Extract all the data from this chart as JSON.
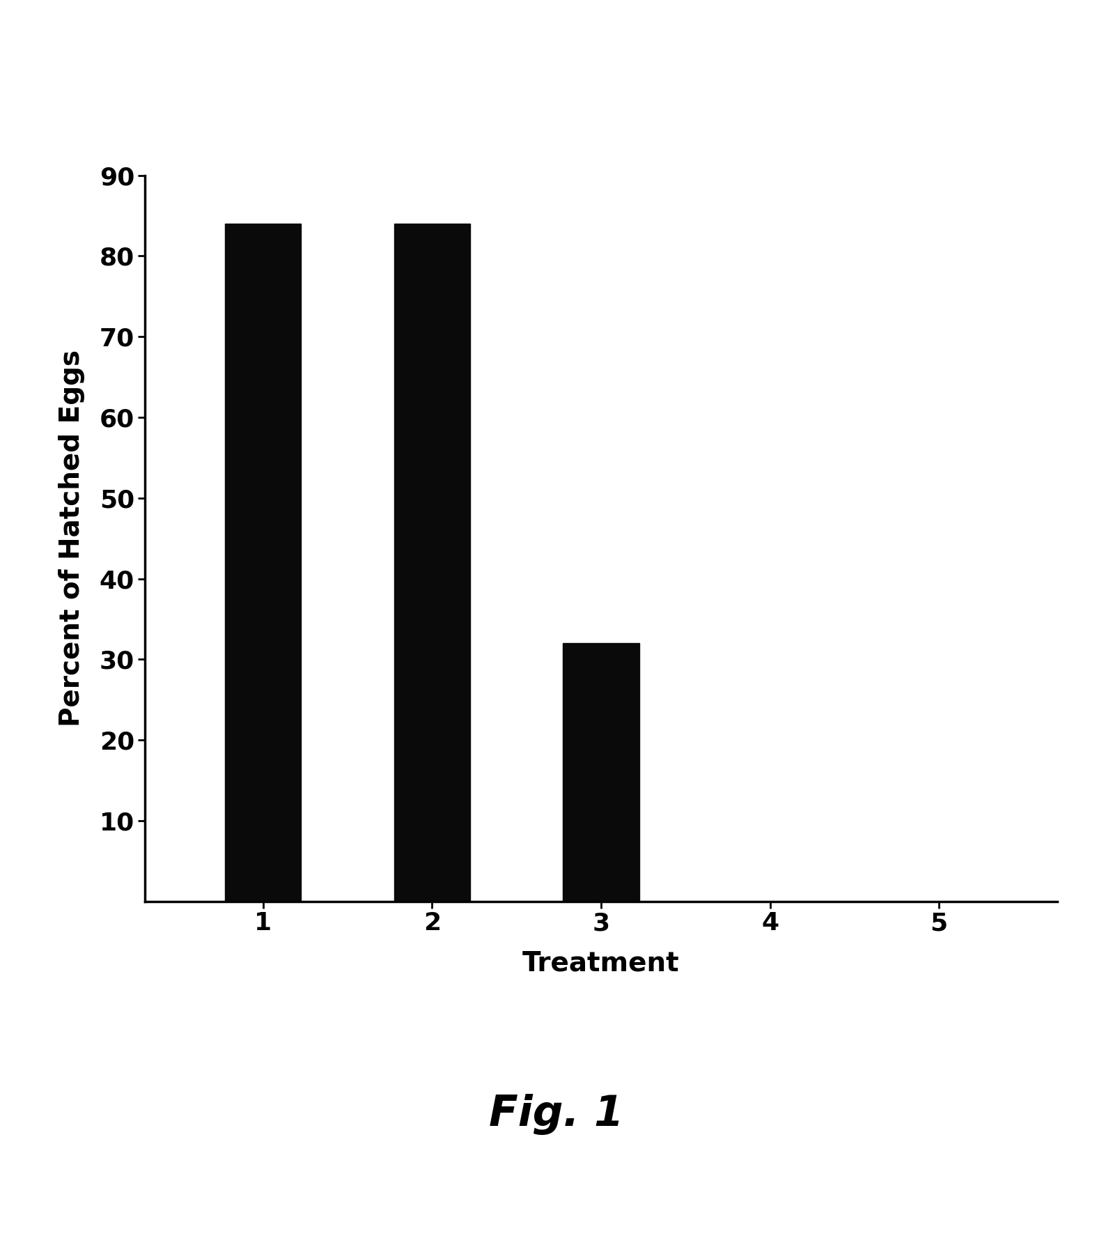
{
  "categories": [
    "1",
    "2",
    "3",
    "4",
    "5"
  ],
  "values": [
    84,
    84,
    32,
    0,
    0
  ],
  "bar_color": "#0a0a0a",
  "bar_width": 0.45,
  "ylabel": "Percent of Hatched Eggs",
  "xlabel": "Treatment",
  "caption": "Fig. 1",
  "ylim": [
    0,
    90
  ],
  "yticks": [
    10,
    20,
    30,
    40,
    50,
    60,
    70,
    80,
    90
  ],
  "background_color": "#ffffff",
  "ylabel_fontsize": 28,
  "xlabel_fontsize": 28,
  "tick_fontsize": 26,
  "caption_fontsize": 44,
  "axis_linewidth": 2.5
}
